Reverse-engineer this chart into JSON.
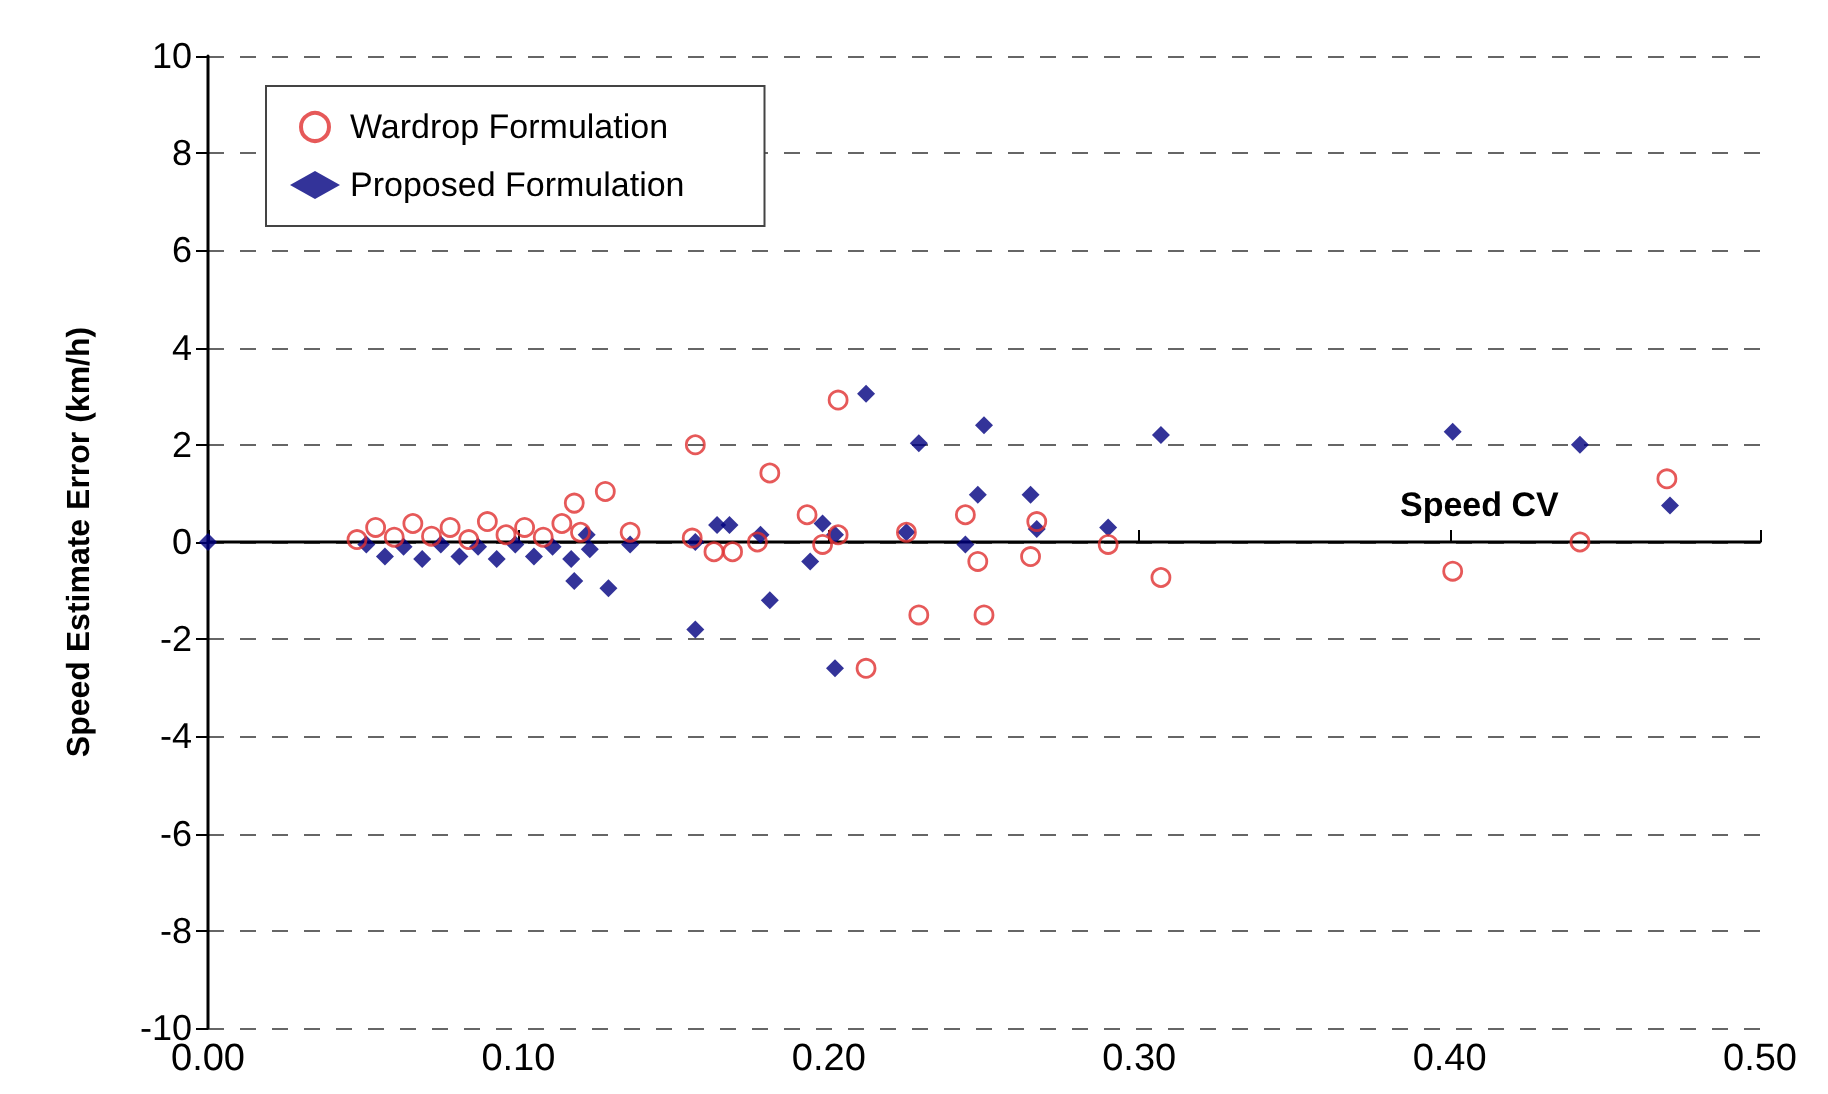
{
  "chart_data": {
    "type": "scatter",
    "ylabel": "Speed Estimate Error (km/h)",
    "xlabel": "Speed CV",
    "xlim": [
      0,
      0.5
    ],
    "xticks": [
      {
        "value": 0,
        "label": "0.00"
      },
      {
        "value": 0.1,
        "label": "0.10"
      },
      {
        "value": 0.2,
        "label": "0.20"
      },
      {
        "value": 0.3,
        "label": "0.30"
      },
      {
        "value": 0.4,
        "label": "0.40"
      },
      {
        "value": 0.5,
        "label": "0.50"
      }
    ],
    "ylim": [
      -10,
      10
    ],
    "yticks": [
      -10,
      -8,
      -6,
      -4,
      -2,
      0,
      2,
      4,
      6,
      8,
      10
    ],
    "grid": "y",
    "legend": "top left",
    "series": [
      {
        "name": "Wardrop Formulation",
        "color": "#e03030",
        "marker": "circle",
        "x": [
          0.048,
          0.054,
          0.06,
          0.066,
          0.072,
          0.078,
          0.084,
          0.09,
          0.096,
          0.102,
          0.108,
          0.114,
          0.12,
          0.118,
          0.128,
          0.136,
          0.156,
          0.157,
          0.163,
          0.169,
          0.177,
          0.181,
          0.193,
          0.198,
          0.203,
          0.203,
          0.212,
          0.225,
          0.229,
          0.244,
          0.248,
          0.25,
          0.265,
          0.267,
          0.29,
          0.307,
          0.401,
          0.442,
          0.47
        ],
        "values": [
          0.05,
          0.3,
          0.1,
          0.38,
          0.12,
          0.3,
          0.05,
          0.42,
          0.15,
          0.3,
          0.1,
          0.38,
          0.2,
          0.8,
          1.04,
          0.2,
          0.08,
          2.0,
          -0.2,
          -0.2,
          0,
          1.42,
          0.56,
          -0.05,
          2.92,
          0.15,
          -2.6,
          0.2,
          -1.5,
          0.56,
          -0.4,
          -1.5,
          -0.3,
          0.42,
          -0.05,
          -0.73,
          -0.6,
          0,
          1.3
        ]
      },
      {
        "name": "Proposed Formulation",
        "color": "#000080",
        "marker": "diamond",
        "x": [
          0,
          0.051,
          0.057,
          0.063,
          0.069,
          0.075,
          0.081,
          0.087,
          0.093,
          0.099,
          0.105,
          0.111,
          0.117,
          0.123,
          0.118,
          0.129,
          0.136,
          0.122,
          0.157,
          0.157,
          0.164,
          0.168,
          0.178,
          0.181,
          0.194,
          0.198,
          0.202,
          0.202,
          0.212,
          0.225,
          0.229,
          0.244,
          0.248,
          0.25,
          0.265,
          0.267,
          0.29,
          0.307,
          0.401,
          0.442,
          0.471
        ],
        "values": [
          0,
          -0.05,
          -0.3,
          -0.1,
          -0.35,
          -0.05,
          -0.3,
          -0.1,
          -0.35,
          -0.05,
          -0.3,
          -0.1,
          -0.35,
          -0.15,
          -0.8,
          -0.95,
          -0.05,
          0.15,
          0,
          -1.8,
          0.35,
          0.35,
          0.15,
          -1.2,
          -0.4,
          0.38,
          0.15,
          -2.6,
          3.05,
          0.2,
          2.03,
          -0.05,
          0.97,
          2.4,
          0.97,
          0.27,
          0.3,
          2.2,
          2.27,
          2.0,
          0.75
        ]
      }
    ]
  }
}
